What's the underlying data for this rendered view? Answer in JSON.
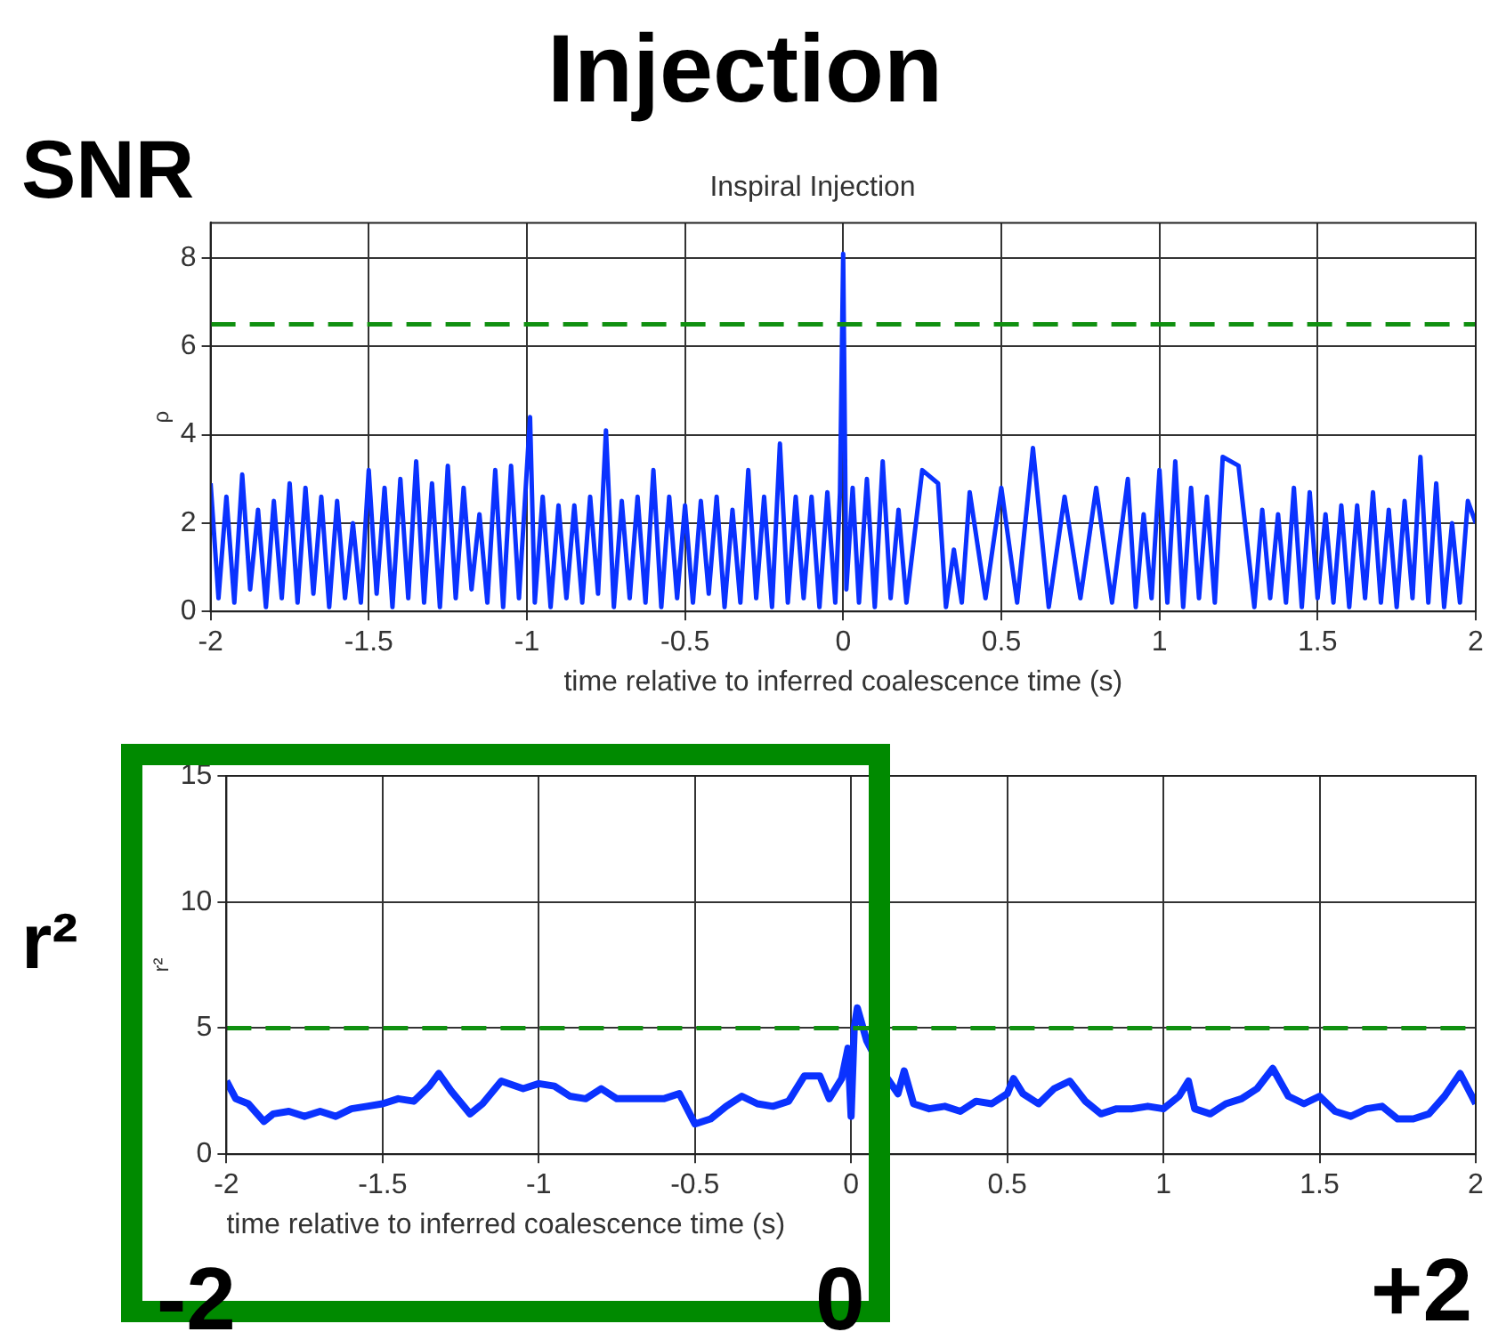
{
  "chart_data": [
    {
      "type": "line",
      "title": "Injection",
      "subtitle": "Inspiral Injection",
      "ylabel": "ρ",
      "xlabel": "time relative to inferred coalescence time (s)",
      "annotations": [
        "SNR"
      ],
      "xlim": [
        -2,
        2
      ],
      "xticks": [
        -2,
        -1.5,
        -1,
        -0.5,
        0,
        0.5,
        1,
        1.5,
        2
      ],
      "ylim": [
        0,
        8.8
      ],
      "yticks": [
        0,
        2,
        4,
        6,
        8
      ],
      "grid": true,
      "legend": false,
      "marker": "none",
      "ref_lines": [
        {
          "axis": "y",
          "value": 6.5,
          "color": "#109010",
          "line_style": "dashed"
        }
      ],
      "series": [
        {
          "color": "#0a32ff",
          "x": [
            -2,
            -1.975,
            -1.95,
            -1.925,
            -1.9,
            -1.875,
            -1.85,
            -1.825,
            -1.8,
            -1.775,
            -1.75,
            -1.725,
            -1.7,
            -1.675,
            -1.65,
            -1.625,
            -1.6,
            -1.575,
            -1.55,
            -1.525,
            -1.5,
            -1.475,
            -1.45,
            -1.425,
            -1.4,
            -1.375,
            -1.35,
            -1.325,
            -1.3,
            -1.275,
            -1.25,
            -1.225,
            -1.2,
            -1.175,
            -1.15,
            -1.125,
            -1.1,
            -1.075,
            -1.05,
            -1.025,
            -0.99,
            -0.975,
            -0.95,
            -0.925,
            -0.9,
            -0.875,
            -0.85,
            -0.825,
            -0.8,
            -0.775,
            -0.75,
            -0.725,
            -0.7,
            -0.675,
            -0.65,
            -0.625,
            -0.6,
            -0.575,
            -0.55,
            -0.525,
            -0.5,
            -0.475,
            -0.45,
            -0.425,
            -0.4,
            -0.375,
            -0.35,
            -0.325,
            -0.3,
            -0.275,
            -0.25,
            -0.225,
            -0.2,
            -0.175,
            -0.15,
            -0.125,
            -0.1,
            -0.075,
            -0.05,
            -0.025,
            -0.01,
            0,
            0.01,
            0.03,
            0.05,
            0.075,
            0.1,
            0.125,
            0.15,
            0.175,
            0.2,
            0.25,
            0.3,
            0.325,
            0.35,
            0.375,
            0.4,
            0.45,
            0.5,
            0.55,
            0.6,
            0.65,
            0.7,
            0.75,
            0.8,
            0.85,
            0.9,
            0.925,
            0.95,
            0.975,
            1,
            1.025,
            1.05,
            1.075,
            1.1,
            1.125,
            1.15,
            1.175,
            1.2,
            1.25,
            1.3,
            1.325,
            1.35,
            1.375,
            1.4,
            1.425,
            1.45,
            1.475,
            1.5,
            1.525,
            1.55,
            1.575,
            1.6,
            1.625,
            1.65,
            1.675,
            1.7,
            1.725,
            1.75,
            1.775,
            1.8,
            1.825,
            1.85,
            1.875,
            1.9,
            1.925,
            1.95,
            1.975,
            2
          ],
          "values": [
            2.9,
            0.3,
            2.6,
            0.2,
            3.1,
            0.5,
            2.3,
            0.1,
            2.5,
            0.3,
            2.9,
            0.2,
            2.8,
            0.4,
            2.6,
            0.1,
            2.5,
            0.3,
            2,
            0.2,
            3.2,
            0.4,
            2.8,
            0.1,
            3,
            0.3,
            3.4,
            0.2,
            2.9,
            0.1,
            3.3,
            0.3,
            2.8,
            0.5,
            2.2,
            0.2,
            3.2,
            0.1,
            3.3,
            0.3,
            4.4,
            0.2,
            2.6,
            0.1,
            2.4,
            0.3,
            2.4,
            0.2,
            2.6,
            0.4,
            4.1,
            0.1,
            2.5,
            0.3,
            2.6,
            0.2,
            3.2,
            0.1,
            2.6,
            0.3,
            2.4,
            0.2,
            2.5,
            0.4,
            2.6,
            0.1,
            2.3,
            0.2,
            3.2,
            0.3,
            2.6,
            0.1,
            3.8,
            0.2,
            2.6,
            0.3,
            2.6,
            0.1,
            2.7,
            0.2,
            2.7,
            8.1,
            0.5,
            2.8,
            0.2,
            3,
            0.1,
            3.4,
            0.3,
            2.3,
            0.2,
            3.2,
            2.9,
            0.1,
            1.4,
            0.2,
            2.7,
            0.3,
            2.8,
            0.2,
            3.7,
            0.1,
            2.6,
            0.3,
            2.8,
            0.2,
            3,
            0.1,
            2.2,
            0.3,
            3.2,
            0.2,
            3.4,
            0.1,
            2.8,
            0.3,
            2.6,
            0.2,
            3.5,
            3.3,
            0.1,
            2.3,
            0.3,
            2.2,
            0.2,
            2.8,
            0.1,
            2.7,
            0.3,
            2.2,
            0.2,
            2.4,
            0.1,
            2.4,
            0.3,
            2.7,
            0.2,
            2.3,
            0.1,
            2.5,
            0.3,
            3.5,
            0.2,
            2.9,
            0.1,
            2,
            0.2,
            2.5,
            2
          ]
        }
      ]
    },
    {
      "type": "line",
      "ylabel": "r²",
      "xlabel": "time relative to inferred coalescence time (s)",
      "annotations": [
        "r²",
        "-2",
        "0",
        "+2"
      ],
      "xlim": [
        -2,
        2
      ],
      "xticks": [
        -2,
        -1.5,
        -1,
        -0.5,
        0,
        0.5,
        1,
        1.5,
        2
      ],
      "ylim": [
        0,
        15
      ],
      "yticks": [
        0,
        5,
        10,
        15
      ],
      "grid": true,
      "legend": false,
      "marker": "none",
      "ref_lines": [
        {
          "axis": "y",
          "value": 5,
          "color": "#109010",
          "line_style": "dashed"
        }
      ],
      "series": [
        {
          "color": "#0a32ff",
          "x": [
            -2,
            -1.97,
            -1.93,
            -1.88,
            -1.85,
            -1.8,
            -1.75,
            -1.7,
            -1.65,
            -1.6,
            -1.55,
            -1.5,
            -1.45,
            -1.4,
            -1.35,
            -1.32,
            -1.28,
            -1.22,
            -1.18,
            -1.12,
            -1.05,
            -1,
            -0.95,
            -0.9,
            -0.85,
            -0.8,
            -0.75,
            -0.7,
            -0.65,
            -0.6,
            -0.55,
            -0.5,
            -0.45,
            -0.4,
            -0.35,
            -0.3,
            -0.25,
            -0.2,
            -0.15,
            -0.1,
            -0.07,
            -0.03,
            -0.01,
            0,
            0.01,
            0.02,
            0.05,
            0.1,
            0.15,
            0.17,
            0.2,
            0.25,
            0.3,
            0.35,
            0.4,
            0.45,
            0.5,
            0.52,
            0.55,
            0.6,
            0.65,
            0.7,
            0.75,
            0.8,
            0.85,
            0.9,
            0.95,
            1,
            1.05,
            1.08,
            1.1,
            1.15,
            1.2,
            1.25,
            1.3,
            1.35,
            1.4,
            1.45,
            1.5,
            1.55,
            1.6,
            1.65,
            1.7,
            1.75,
            1.8,
            1.85,
            1.9,
            1.95,
            2
          ],
          "values": [
            2.9,
            2.2,
            2,
            1.3,
            1.6,
            1.7,
            1.5,
            1.7,
            1.5,
            1.8,
            1.9,
            2,
            2.2,
            2.1,
            2.7,
            3.2,
            2.5,
            1.6,
            2,
            2.9,
            2.6,
            2.8,
            2.7,
            2.3,
            2.2,
            2.6,
            2.2,
            2.2,
            2.2,
            2.2,
            2.4,
            1.2,
            1.4,
            1.9,
            2.3,
            2,
            1.9,
            2.1,
            3.1,
            3.1,
            2.2,
            3,
            4.2,
            1.5,
            5,
            5.8,
            4.5,
            3.3,
            2.4,
            3.3,
            2,
            1.8,
            1.9,
            1.7,
            2.1,
            2,
            2.4,
            3,
            2.4,
            2,
            2.6,
            2.9,
            2.1,
            1.6,
            1.8,
            1.8,
            1.9,
            1.8,
            2.3,
            2.9,
            1.8,
            1.6,
            2,
            2.2,
            2.6,
            3.4,
            2.3,
            2,
            2.3,
            1.7,
            1.5,
            1.8,
            1.9,
            1.4,
            1.4,
            1.6,
            2.3,
            3.2,
            2
          ]
        }
      ]
    }
  ]
}
